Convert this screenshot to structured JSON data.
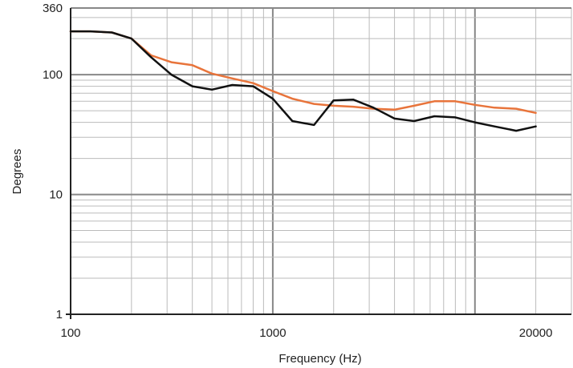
{
  "chart_data": {
    "type": "line",
    "title": "",
    "xlabel": "Frequency (Hz)",
    "ylabel": "Degrees",
    "x_scale": "log",
    "y_scale": "log",
    "xlim": [
      100,
      30000
    ],
    "ylim": [
      1,
      360
    ],
    "grid": true,
    "legend": "none",
    "x_tick_labels": [
      {
        "value": 100,
        "label": "100"
      },
      {
        "value": 1000,
        "label": "1000"
      },
      {
        "value": 20000,
        "label": "20000"
      }
    ],
    "y_tick_labels": [
      {
        "value": 1,
        "label": "1"
      },
      {
        "value": 10,
        "label": "10"
      },
      {
        "value": 100,
        "label": "100"
      },
      {
        "value": 360,
        "label": "360"
      }
    ],
    "series": [
      {
        "color": "#e8743b",
        "x": [
          100,
          125,
          160,
          200,
          250,
          315,
          400,
          500,
          630,
          800,
          1000,
          1250,
          1600,
          2000,
          2500,
          3150,
          4000,
          5000,
          6300,
          8000,
          10000,
          12500,
          16000,
          20000
        ],
        "y": [
          230,
          230,
          225,
          200,
          145,
          127,
          120,
          102,
          93,
          85,
          73,
          63,
          57,
          55,
          54,
          52,
          51,
          55,
          60,
          60,
          56,
          53,
          52,
          48
        ]
      },
      {
        "color": "#111111",
        "x": [
          100,
          125,
          160,
          200,
          250,
          315,
          400,
          500,
          630,
          800,
          1000,
          1250,
          1600,
          2000,
          2500,
          3150,
          4000,
          5000,
          6300,
          8000,
          10000,
          12500,
          16000,
          20000
        ],
        "y": [
          230,
          230,
          225,
          200,
          140,
          100,
          80,
          75,
          82,
          80,
          63,
          41,
          38,
          61,
          62,
          53,
          43,
          41,
          45,
          44,
          40,
          37,
          34,
          37
        ]
      }
    ]
  },
  "colors": {
    "major_grid": "#888888",
    "minor_grid": "#bbbbbb",
    "axis": "#222222"
  }
}
